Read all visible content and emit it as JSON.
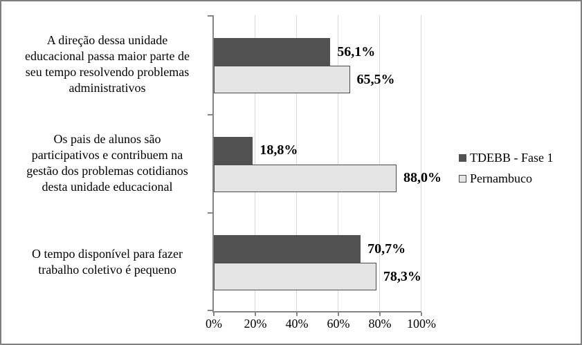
{
  "chart_data": {
    "type": "bar",
    "orientation": "horizontal",
    "title": "",
    "categories": [
      {
        "text": "A direção dessa unidade educacional passa maior parte de seu tempo resolvendo problemas administrativos",
        "lines": [
          "A direção dessa unidade",
          "educacional passa maior parte de",
          "seu tempo resolvendo problemas",
          "administrativos"
        ]
      },
      {
        "text": "Os pais de alunos são participativos e contribuem na gestão dos problemas cotidianos desta unidade educacional",
        "lines": [
          "Os pais de alunos são",
          "participativos e contribuem na",
          "gestão dos problemas cotidianos",
          "desta unidade educacional"
        ]
      },
      {
        "text": "O tempo disponível para fazer trabalho coletivo é pequeno",
        "lines": [
          "O tempo disponível para fazer",
          "trabalho coletivo é pequeno"
        ]
      }
    ],
    "series": [
      {
        "name": "TDEBB - Fase 1",
        "values": [
          56.1,
          18.8,
          70.7
        ],
        "labels": [
          "56,1%",
          "18,8%",
          "70,7%"
        ],
        "fill": "#515151",
        "border": "#515151"
      },
      {
        "name": "Pernambuco",
        "values": [
          65.5,
          88.0,
          78.3
        ],
        "labels": [
          "65,5%",
          "88,0%",
          "78,3%"
        ],
        "fill": "#e4e4e4",
        "border": "#4a4a4a"
      }
    ],
    "x_axis": {
      "min": 0,
      "max": 100,
      "tick_step": 20,
      "tick_labels": [
        "0%",
        "20%",
        "40%",
        "60%",
        "80%",
        "100%"
      ]
    },
    "legend_position": "right",
    "grid": true
  },
  "colors": {
    "dark_series": "#515151",
    "light_series_fill": "#e4e4e4",
    "light_series_border": "#4a4a4a",
    "axis": "#858585",
    "grid": "#d9d9d9",
    "frame": "#7f7f7f",
    "text": "#000000",
    "background": "#ffffff"
  }
}
